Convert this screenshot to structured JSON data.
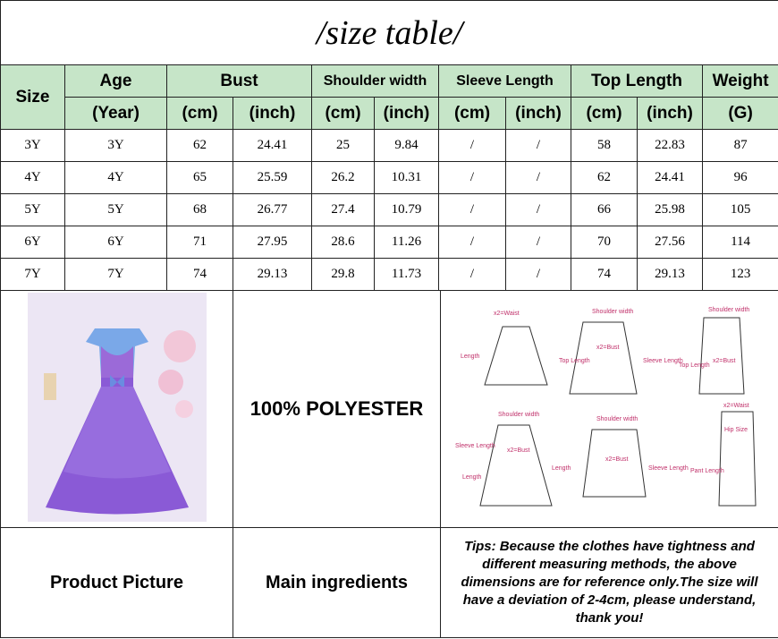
{
  "title": "/size table/",
  "header": {
    "size": "Size",
    "age": "Age",
    "age_unit": "(Year)",
    "bust": "Bust",
    "shoulder": "Shoulder width",
    "sleeve": "Sleeve Length",
    "top": "Top Length",
    "weight": "Weight",
    "cm": "(cm)",
    "inch": "(inch)",
    "g": "(G)"
  },
  "rows": [
    [
      "3Y",
      "3Y",
      "62",
      "24.41",
      "25",
      "9.84",
      "/",
      "/",
      "58",
      "22.83",
      "87"
    ],
    [
      "4Y",
      "4Y",
      "65",
      "25.59",
      "26.2",
      "10.31",
      "/",
      "/",
      "62",
      "24.41",
      "96"
    ],
    [
      "5Y",
      "5Y",
      "68",
      "26.77",
      "27.4",
      "10.79",
      "/",
      "/",
      "66",
      "25.98",
      "105"
    ],
    [
      "6Y",
      "6Y",
      "71",
      "27.95",
      "28.6",
      "11.26",
      "/",
      "/",
      "70",
      "27.56",
      "114"
    ],
    [
      "7Y",
      "7Y",
      "74",
      "29.13",
      "29.8",
      "11.73",
      "/",
      "/",
      "74",
      "29.13",
      "123"
    ]
  ],
  "material": "100% POLYESTER",
  "diagram": {
    "waist": "x2=Waist",
    "shoulder": "Shoulder width",
    "length": "Length",
    "top_length": "Top Length",
    "sleeve_length": "Sleeve Length",
    "bust": "x2=Bust",
    "hip": "Hip Size",
    "pant_length": "Pant Length"
  },
  "footer": {
    "product_picture": "Product Picture",
    "main_ingredients": "Main ingredients",
    "tips": "Tips: Because the clothes have tightness and different measuring methods, the above dimensions are for reference only.The size will have a deviation of 2-4cm, please understand, thank you!"
  },
  "colors": {
    "header_bg": "#c6e5c8",
    "diagram_label": "#c0306a",
    "dress": "#8a5ad6"
  }
}
